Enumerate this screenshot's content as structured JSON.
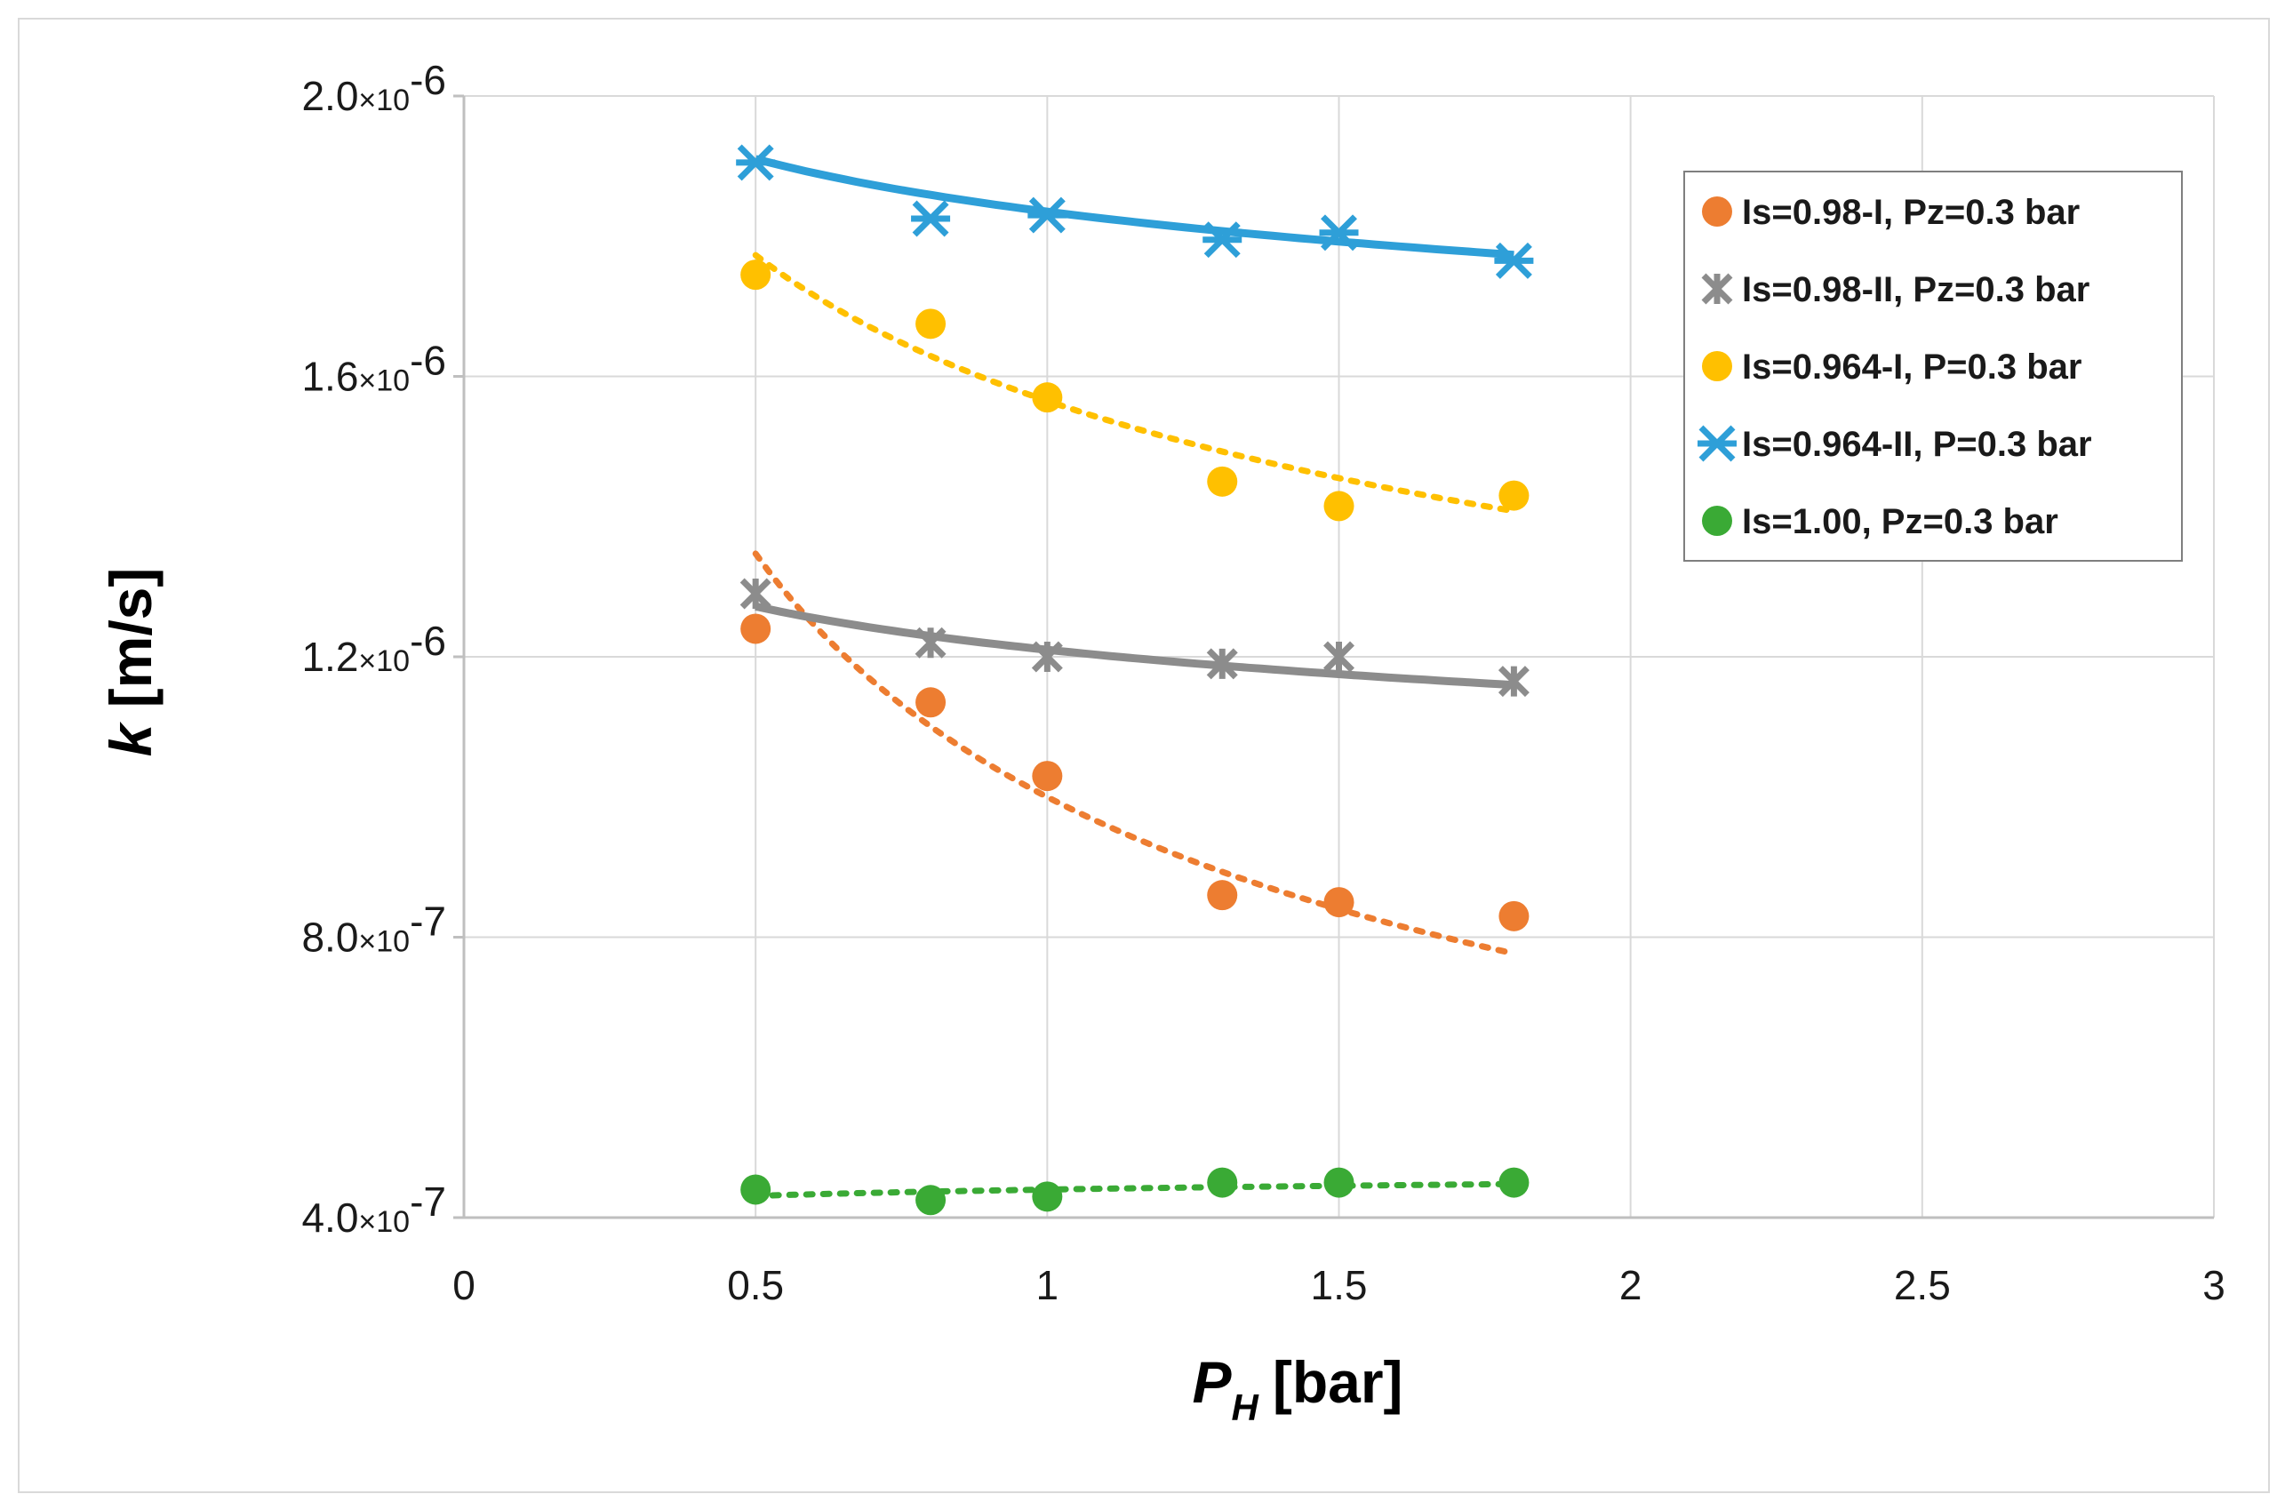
{
  "chart_data": {
    "type": "scatter",
    "title": "",
    "xlabel": {
      "main": "P",
      "subscript": "H",
      "unit": "[bar]"
    },
    "ylabel": {
      "main": "k",
      "unit": "[m/s]"
    },
    "xlim": [
      0,
      3
    ],
    "ylim": [
      4e-07,
      2e-06
    ],
    "grid": true,
    "x_ticks": [
      {
        "value": 0,
        "label": "0"
      },
      {
        "value": 0.5,
        "label": "0.5"
      },
      {
        "value": 1,
        "label": "1"
      },
      {
        "value": 1.5,
        "label": "1.5"
      },
      {
        "value": 2,
        "label": "2"
      },
      {
        "value": 2.5,
        "label": "2.5"
      },
      {
        "value": 3,
        "label": "3"
      }
    ],
    "y_ticks": [
      {
        "value": 4e-07,
        "mantissa": "4.0",
        "times": "×10",
        "exponent": "-7"
      },
      {
        "value": 8e-07,
        "mantissa": "8.0",
        "times": "×10",
        "exponent": "-7"
      },
      {
        "value": 1.2e-06,
        "mantissa": "1.2",
        "times": "×10",
        "exponent": "-6"
      },
      {
        "value": 1.6e-06,
        "mantissa": "1.6",
        "times": "×10",
        "exponent": "-6"
      },
      {
        "value": 2e-06,
        "mantissa": "2.0",
        "times": "×10",
        "exponent": "-6"
      }
    ],
    "legend_position": "top-right",
    "series": [
      {
        "name": "Is=0.98-I, Pz=0.3 bar",
        "color": "#ed7d31",
        "marker": "circle",
        "trendline": "dotted",
        "x": [
          0.5,
          0.8,
          1.0,
          1.3,
          1.5,
          1.8
        ],
        "y": [
          1.24e-06,
          1.135e-06,
          1.03e-06,
          8.6e-07,
          8.5e-07,
          8.3e-07
        ],
        "fit": {
          "a": 1e-06,
          "b": -0.43
        }
      },
      {
        "name": "Is=0.98-II, Pz=0.3 bar",
        "color": "#8c8c8c",
        "marker": "star",
        "trendline": "solid",
        "x": [
          0.5,
          0.8,
          1.0,
          1.3,
          1.5,
          1.8
        ],
        "y": [
          1.29e-06,
          1.22e-06,
          1.2e-06,
          1.19e-06,
          1.2e-06,
          1.165e-06
        ],
        "fit": {
          "a": 1.21e-06,
          "b": -0.072
        }
      },
      {
        "name": "Is=0.964-I, P=0.3 bar",
        "color": "#ffc000",
        "marker": "circle",
        "trendline": "dotted",
        "x": [
          0.5,
          0.8,
          1.0,
          1.3,
          1.5,
          1.8
        ],
        "y": [
          1.745e-06,
          1.675e-06,
          1.57e-06,
          1.45e-06,
          1.415e-06,
          1.43e-06
        ],
        "fit": {
          "a": 1.565e-06,
          "b": -0.18
        }
      },
      {
        "name": "Is=0.964-II, P=0.3 bar",
        "color": "#2e9fd8",
        "marker": "asterisk",
        "trendline": "solid",
        "x": [
          0.5,
          0.8,
          1.0,
          1.3,
          1.5,
          1.8
        ],
        "y": [
          1.905e-06,
          1.825e-06,
          1.83e-06,
          1.795e-06,
          1.805e-06,
          1.765e-06
        ],
        "fit": {
          "a": 1.835e-06,
          "b": -0.058
        }
      },
      {
        "name": "Is=1.00, Pz=0.3 bar",
        "color": "#3aaa35",
        "marker": "circle",
        "trendline": "dotted",
        "x": [
          0.5,
          0.8,
          1.0,
          1.3,
          1.5,
          1.8
        ],
        "y": [
          4.4e-07,
          4.25e-07,
          4.3e-07,
          4.5e-07,
          4.5e-07,
          4.5e-07
        ],
        "fit": {
          "a": 4.4e-07,
          "b": 0.03
        }
      }
    ]
  }
}
